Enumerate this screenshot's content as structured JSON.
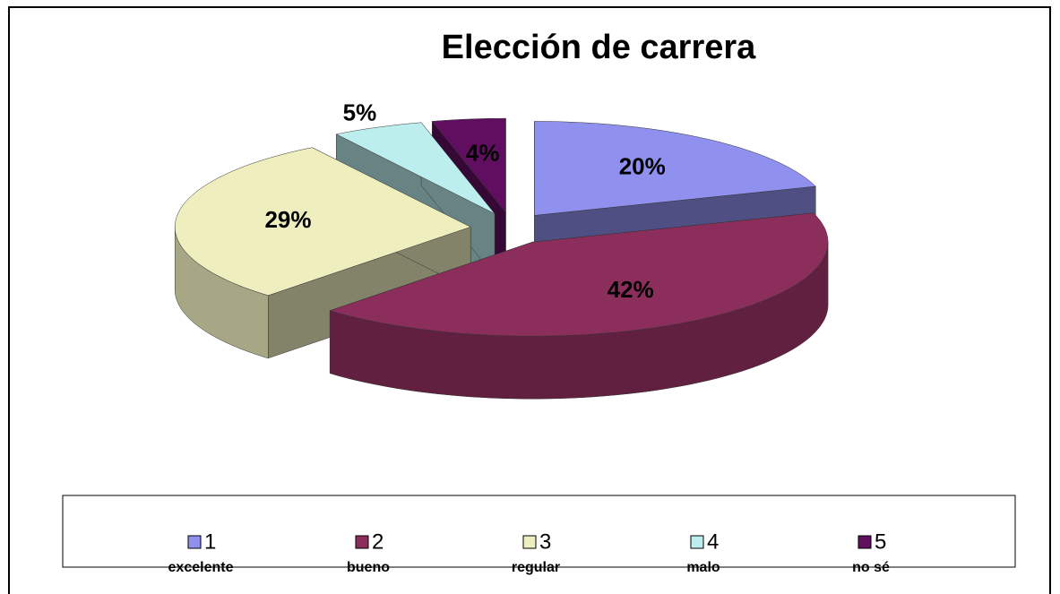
{
  "chart_data": {
    "type": "pie",
    "title": "Elección de carrera",
    "categories": [
      "1",
      "2",
      "3",
      "4",
      "5"
    ],
    "category_labels": [
      "excelente",
      "bueno",
      "regular",
      "malo",
      "no sé"
    ],
    "values": [
      20,
      42,
      29,
      5,
      4
    ],
    "value_labels": [
      "20%",
      "42%",
      "29%",
      "5%",
      "4%"
    ],
    "colors": [
      "#9090ee",
      "#8c2e5c",
      "#eeeebe",
      "#bdeeee",
      "#600f60"
    ],
    "legend": "bottom"
  }
}
